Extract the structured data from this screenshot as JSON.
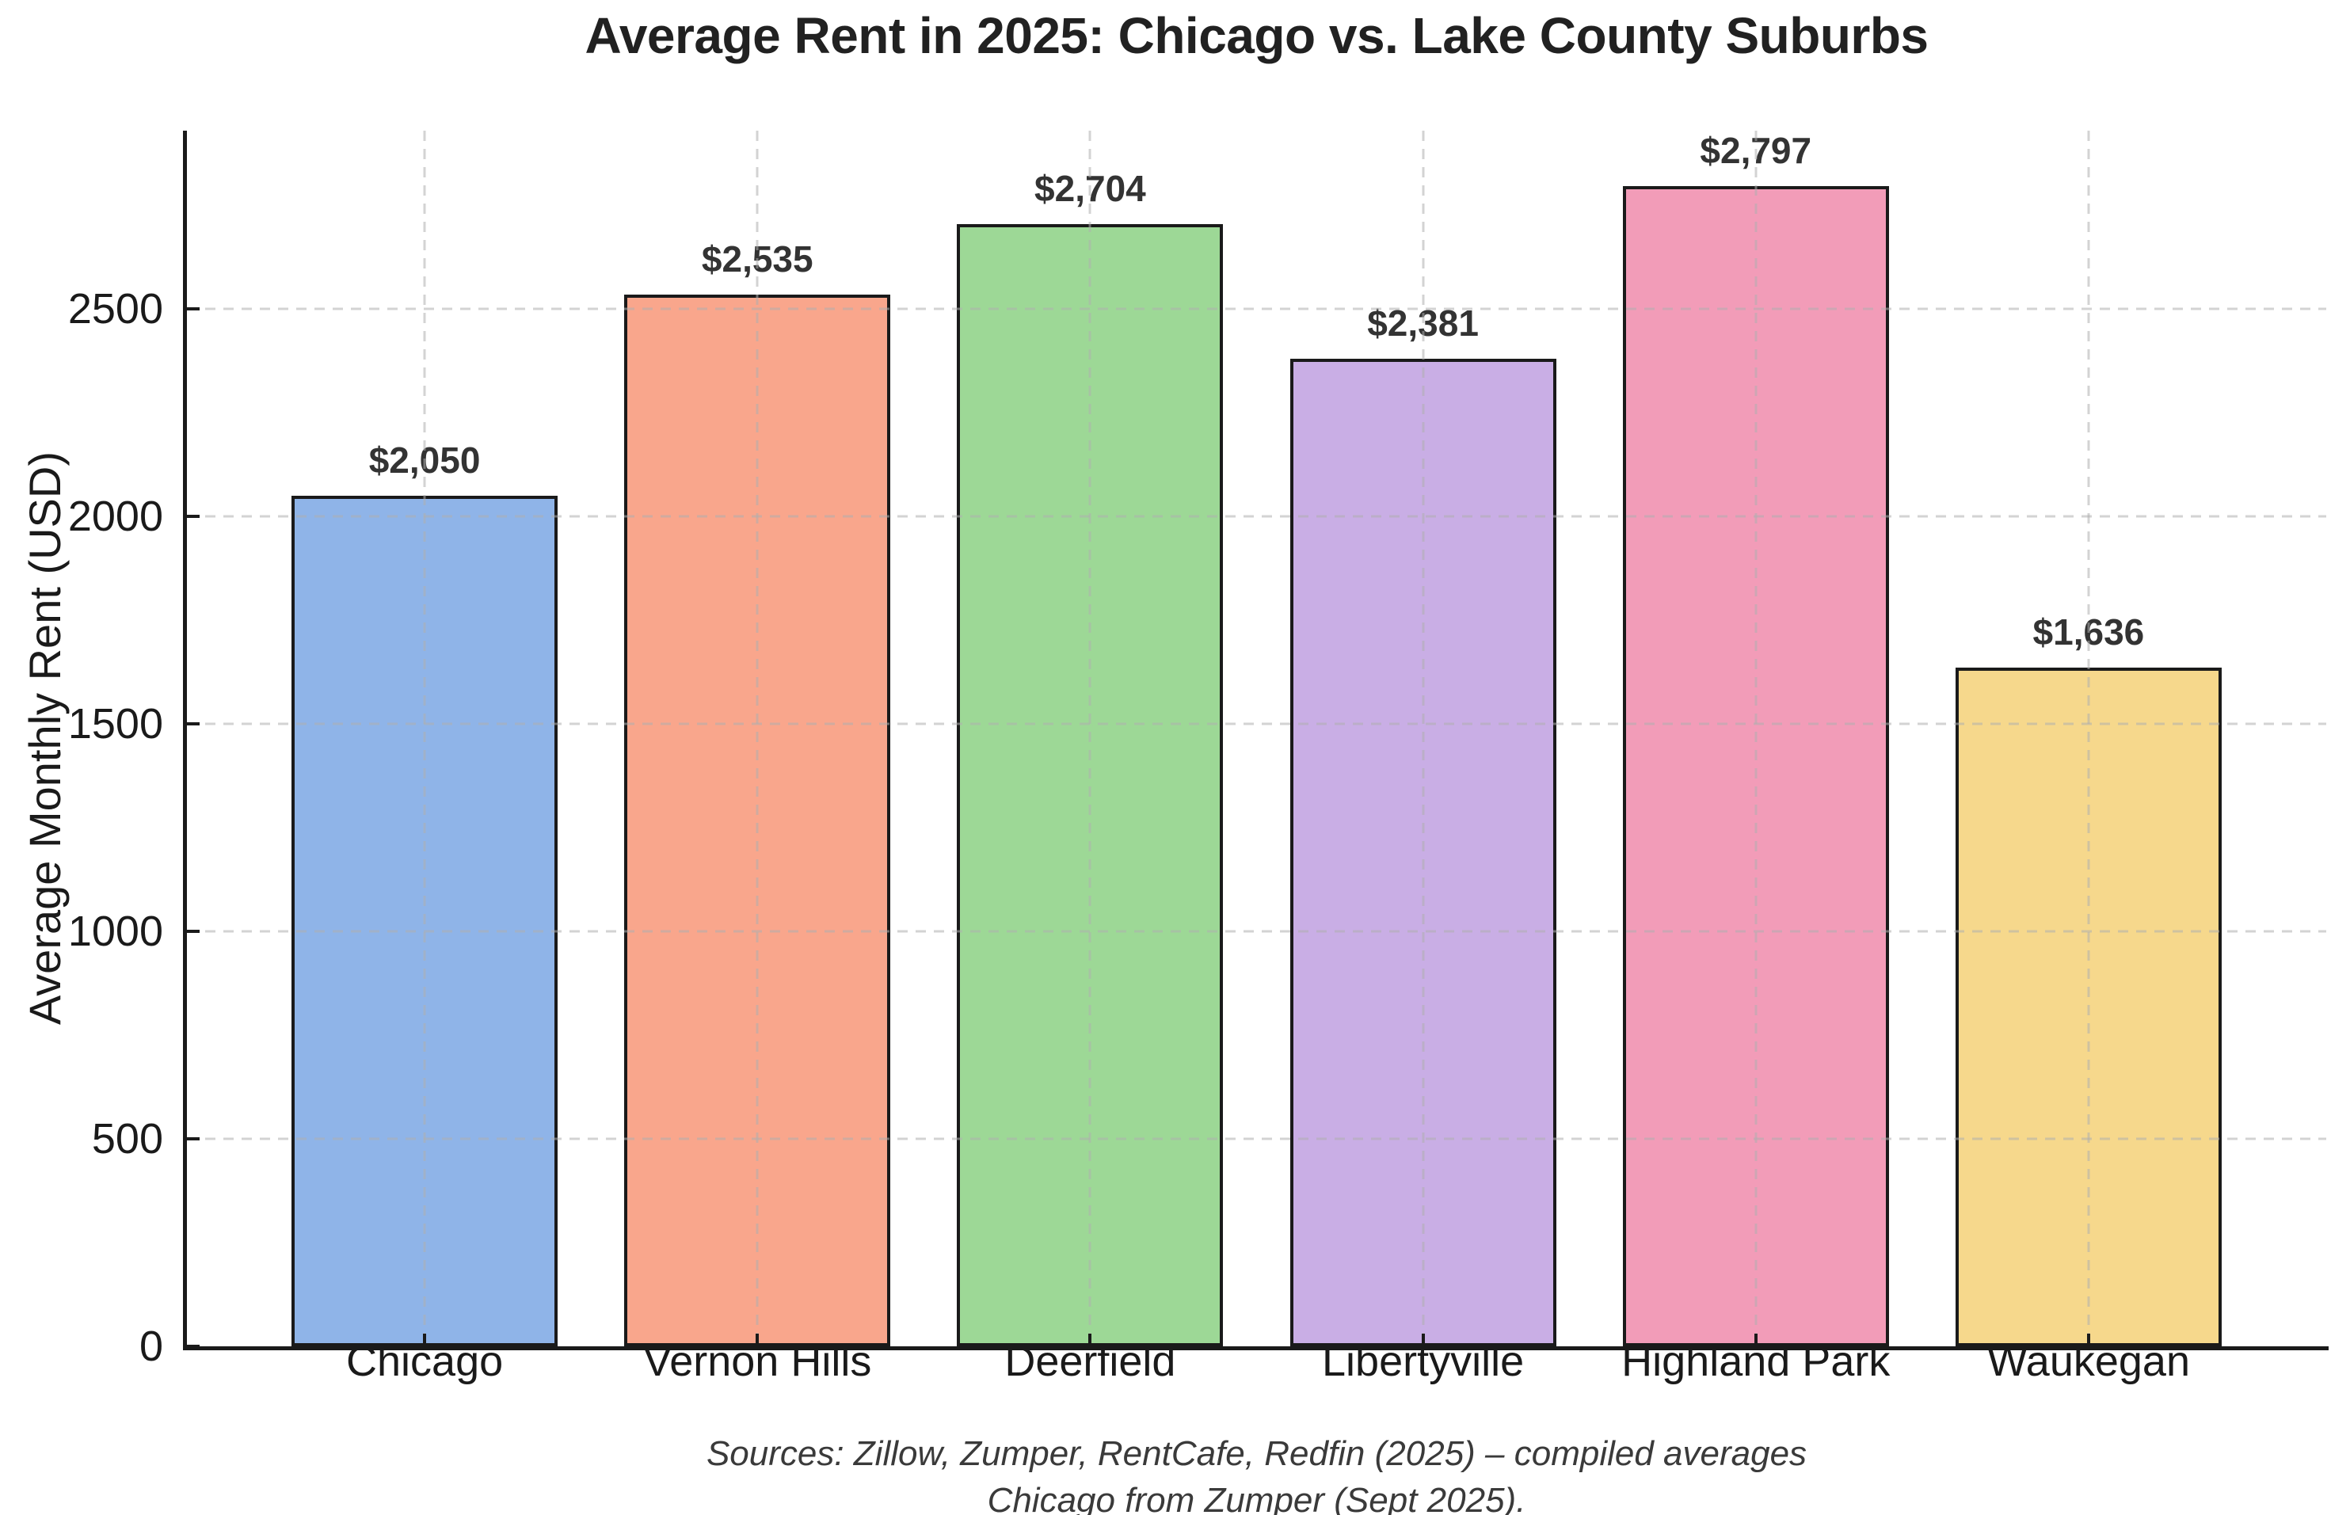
{
  "chart_data": {
    "type": "bar",
    "title": "Average Rent in 2025: Chicago vs. Lake County Suburbs",
    "xlabel": "",
    "ylabel": "Average Monthly Rent (USD)",
    "categories": [
      "Chicago",
      "Vernon Hills",
      "Deerfield",
      "Libertyville",
      "Highland Park",
      "Waukegan"
    ],
    "values": [
      2050,
      2535,
      2704,
      2381,
      2797,
      1636
    ],
    "value_labels": [
      "$2,050",
      "$2,535",
      "$2,704",
      "$2,381",
      "$2,797",
      "$1,636"
    ],
    "bar_colors": [
      "#8FB4E8",
      "#F9A68C",
      "#9DD896",
      "#C9AEE5",
      "#F29CB8",
      "#F6D88C"
    ],
    "bar_edge_color": "#1a1a1a",
    "yticks": [
      0,
      500,
      1000,
      1500,
      2000,
      2500
    ],
    "ylim": [
      0,
      2930
    ],
    "grid": "dashed horizontal lines at y ticks and vertical lines at bar centers, drawn over bars",
    "legend": "none"
  },
  "footer": {
    "line1": "Sources: Zillow, Zumper, RentCafe, Redfin (2025) – compiled averages",
    "line2": "Chicago from Zumper (Sept 2025)."
  }
}
